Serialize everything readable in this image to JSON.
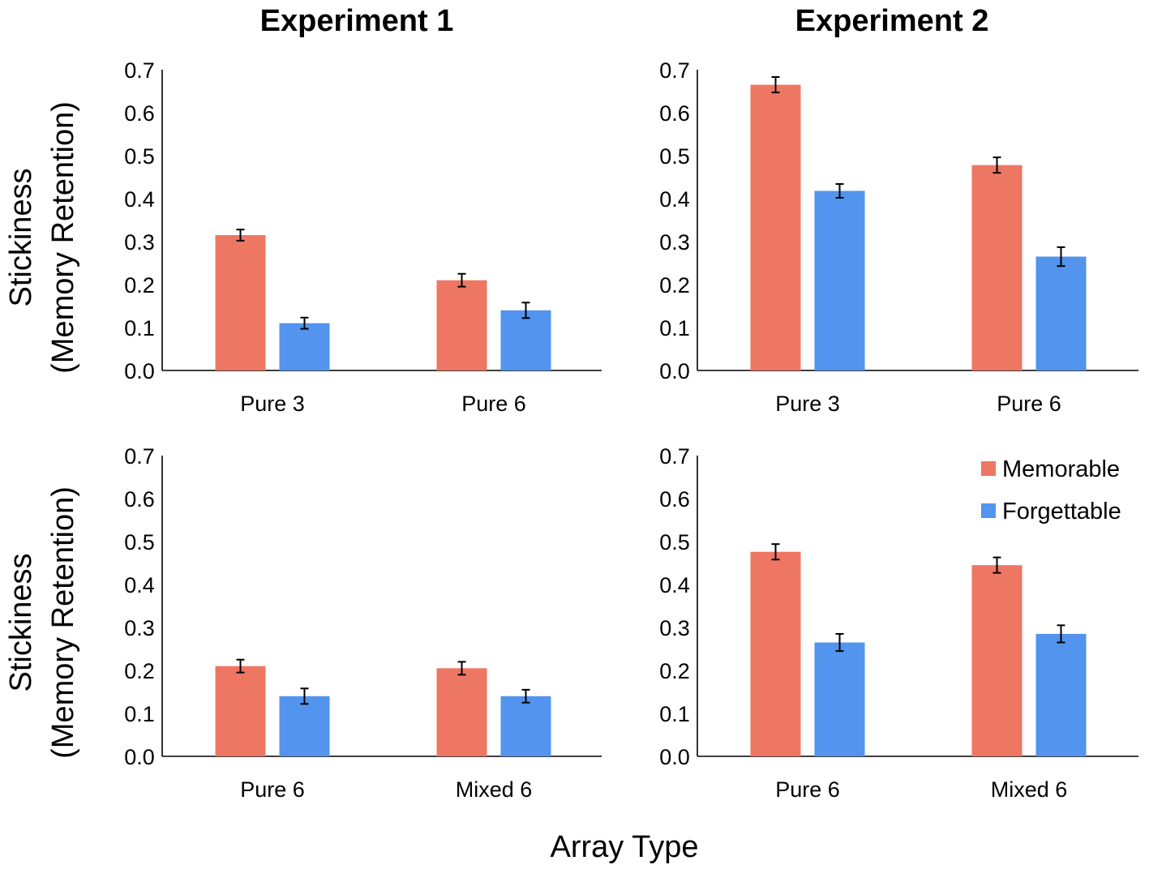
{
  "figure": {
    "col_titles": [
      "Experiment 1",
      "Experiment 2"
    ],
    "row_ylabels": [
      [
        "Stickiness",
        "(Memory Retention)"
      ],
      [
        "Stickiness",
        "(Memory Retention)"
      ]
    ],
    "xlabel": "Array Type",
    "legend": [
      {
        "name": "Memorable",
        "color": "#ee7763"
      },
      {
        "name": "Forgettable",
        "color": "#5294ee"
      }
    ]
  },
  "chart_data": [
    {
      "type": "bar",
      "panel": "top-left",
      "categories": [
        "Pure 3",
        "Pure 6"
      ],
      "series": [
        {
          "name": "Memorable",
          "values": [
            0.315,
            0.21
          ],
          "errors": [
            0.013,
            0.015
          ]
        },
        {
          "name": "Forgettable",
          "values": [
            0.11,
            0.14
          ],
          "errors": [
            0.013,
            0.018
          ]
        }
      ],
      "ylim": [
        0,
        0.7
      ],
      "yticks": [
        "0.0",
        "0.1",
        "0.2",
        "0.3",
        "0.4",
        "0.5",
        "0.6",
        "0.7"
      ],
      "grid": false,
      "legend": "none"
    },
    {
      "type": "bar",
      "panel": "top-right",
      "categories": [
        "Pure 3",
        "Pure 6"
      ],
      "series": [
        {
          "name": "Memorable",
          "values": [
            0.665,
            0.478
          ],
          "errors": [
            0.018,
            0.018
          ]
        },
        {
          "name": "Forgettable",
          "values": [
            0.418,
            0.265
          ],
          "errors": [
            0.016,
            0.022
          ]
        }
      ],
      "ylim": [
        0,
        0.7
      ],
      "yticks": [
        "0.0",
        "0.1",
        "0.2",
        "0.3",
        "0.4",
        "0.5",
        "0.6",
        "0.7"
      ],
      "grid": false,
      "legend": "none"
    },
    {
      "type": "bar",
      "panel": "bottom-left",
      "categories": [
        "Pure 6",
        "Mixed 6"
      ],
      "series": [
        {
          "name": "Memorable",
          "values": [
            0.21,
            0.205
          ],
          "errors": [
            0.015,
            0.015
          ]
        },
        {
          "name": "Forgettable",
          "values": [
            0.14,
            0.14
          ],
          "errors": [
            0.018,
            0.015
          ]
        }
      ],
      "ylim": [
        0,
        0.7
      ],
      "yticks": [
        "0.0",
        "0.1",
        "0.2",
        "0.3",
        "0.4",
        "0.5",
        "0.6",
        "0.7"
      ],
      "grid": false,
      "legend": "none"
    },
    {
      "type": "bar",
      "panel": "bottom-right",
      "categories": [
        "Pure 6",
        "Mixed 6"
      ],
      "series": [
        {
          "name": "Memorable",
          "values": [
            0.476,
            0.445
          ],
          "errors": [
            0.018,
            0.018
          ]
        },
        {
          "name": "Forgettable",
          "values": [
            0.265,
            0.285
          ],
          "errors": [
            0.02,
            0.02
          ]
        }
      ],
      "ylim": [
        0,
        0.7
      ],
      "yticks": [
        "0.0",
        "0.1",
        "0.2",
        "0.3",
        "0.4",
        "0.5",
        "0.6",
        "0.7"
      ],
      "grid": false,
      "legend": "top-right"
    }
  ]
}
